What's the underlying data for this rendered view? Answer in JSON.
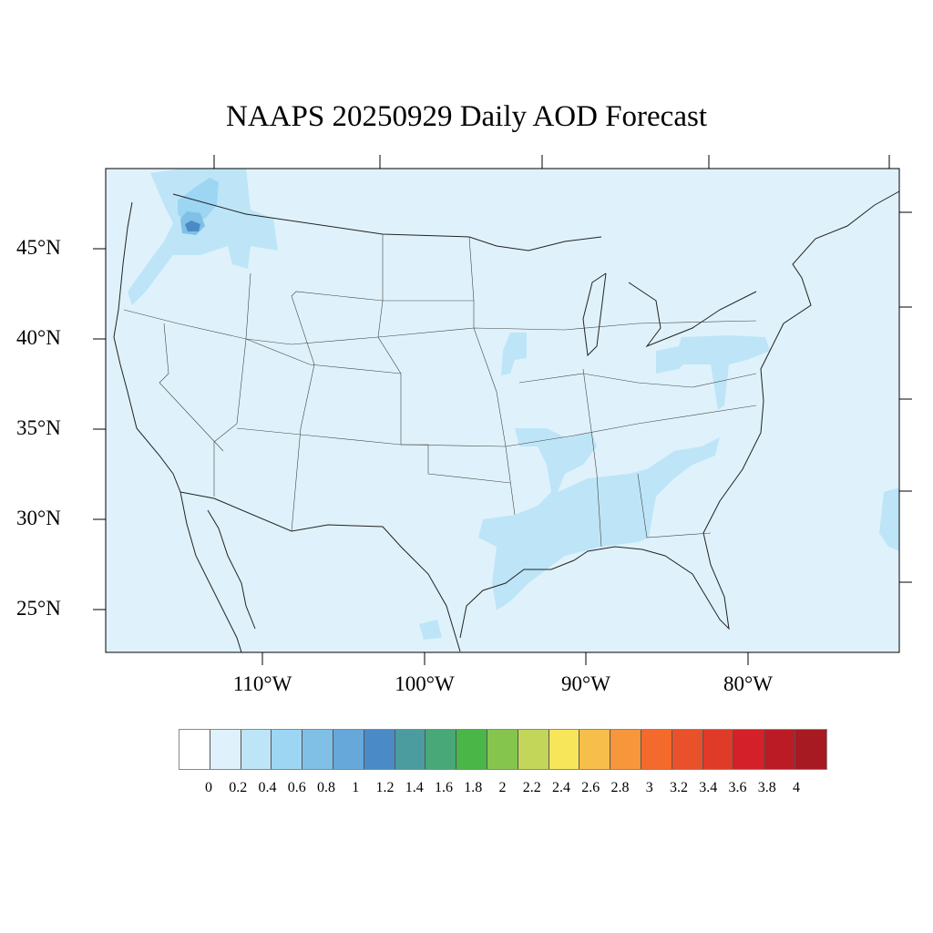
{
  "title": "NAAPS 20250929 Daily AOD Forecast",
  "lat_labels": [
    "45°N",
    "40°N",
    "35°N",
    "30°N",
    "25°N"
  ],
  "lon_labels": [
    "110°W",
    "100°W",
    "90°W",
    "80°W"
  ],
  "colorbar": {
    "labels": [
      "0",
      "0.2",
      "0.4",
      "0.6",
      "0.8",
      "1",
      "1.2",
      "1.4",
      "1.6",
      "1.8",
      "2",
      "2.2",
      "2.4",
      "2.6",
      "2.8",
      "3",
      "3.2",
      "3.4",
      "3.6",
      "3.8",
      "4"
    ],
    "colors": [
      "#ffffff",
      "#dff2fb",
      "#bde5f7",
      "#9cd6f2",
      "#80c0e6",
      "#67a8da",
      "#4a8bc7",
      "#4a9c9f",
      "#48a877",
      "#4bb648",
      "#85c54e",
      "#c3d65a",
      "#f7e65a",
      "#f8be4b",
      "#f7963b",
      "#f46a2c",
      "#e9512b",
      "#e03a28",
      "#d42129",
      "#bb1b25",
      "#a71a22",
      "#8c161c"
    ]
  },
  "map_colors": {
    "background": "#dff2fb",
    "level1": "#bde5f7",
    "level2": "#9cd6f2",
    "level3": "#80c0e6",
    "level4": "#4a8bc7"
  }
}
